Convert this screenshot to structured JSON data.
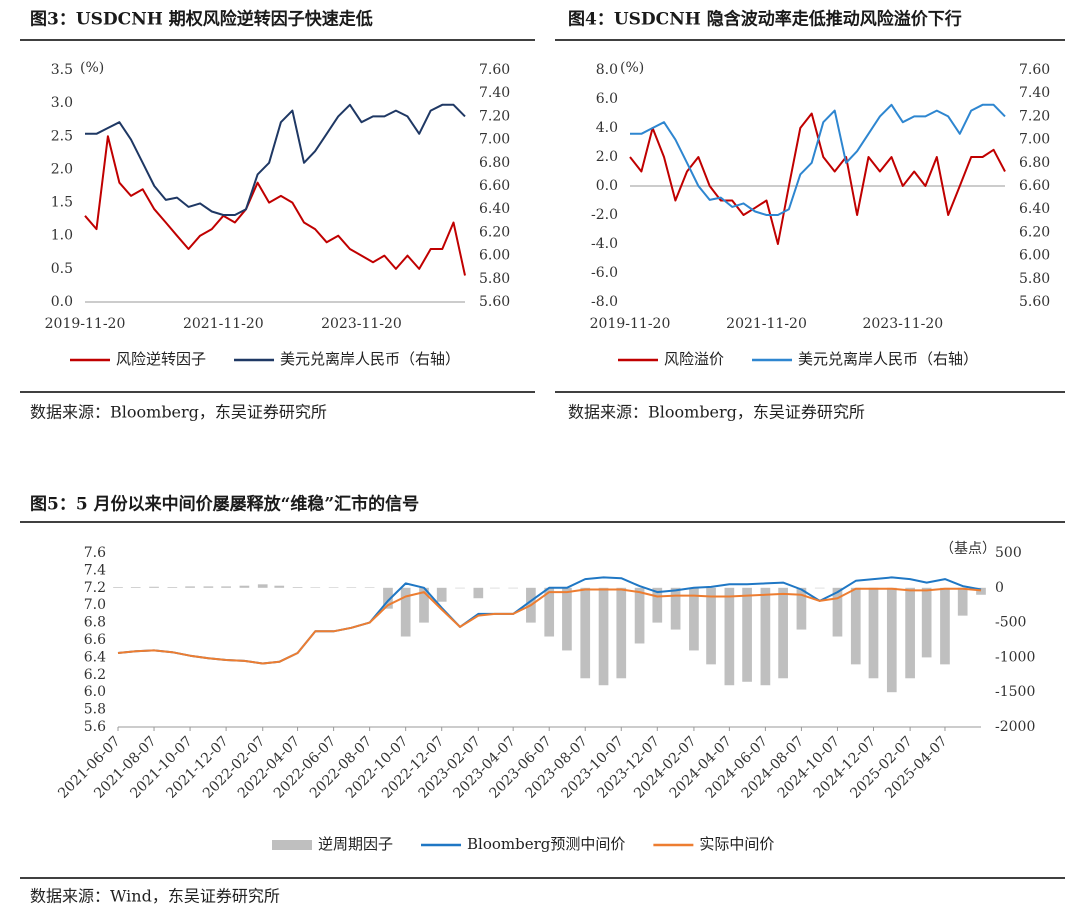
{
  "chart_data": [
    {
      "type": "line",
      "title": "图3：USDCNH 期权风险逆转因子快速走低",
      "unit": "(%)",
      "source": "数据来源：Bloomberg，东吴证券研究所",
      "x": [
        "2019-11-20",
        "2020-01-20",
        "2020-03-20",
        "2020-05-20",
        "2020-07-20",
        "2020-09-20",
        "2020-11-20",
        "2021-01-20",
        "2021-03-20",
        "2021-05-20",
        "2021-07-20",
        "2021-09-20",
        "2021-11-20",
        "2022-01-20",
        "2022-03-20",
        "2022-05-20",
        "2022-07-20",
        "2022-09-20",
        "2022-11-20",
        "2023-01-20",
        "2023-03-20",
        "2023-05-20",
        "2023-07-20",
        "2023-09-20",
        "2023-11-20",
        "2024-01-20",
        "2024-03-20",
        "2024-05-20",
        "2024-07-20",
        "2024-09-20",
        "2024-11-20",
        "2025-01-20",
        "2025-03-20",
        "2025-05-20"
      ],
      "xlim": [
        "2019-11-20",
        "2025-05-20"
      ],
      "xticks": [
        "2019-11-20",
        "2021-11-20",
        "2023-11-20"
      ],
      "ylim": [
        0,
        3.5
      ],
      "yticks": [
        {
          "value": 0,
          "label": "0.0"
        },
        0.5,
        {
          "value": 1,
          "label": "1.0"
        },
        1.5,
        {
          "value": 2,
          "label": "2.0"
        },
        2.5,
        {
          "value": 3,
          "label": "3.0"
        },
        3.5
      ],
      "y2lim": [
        5.6,
        7.6
      ],
      "y2ticks": [
        {
          "value": 5.6,
          "label": "5.60"
        },
        {
          "value": 5.8,
          "label": "5.80"
        },
        {
          "value": 6,
          "label": "6.00"
        },
        {
          "value": 6.2,
          "label": "6.20"
        },
        {
          "value": 6.4,
          "label": "6.40"
        },
        {
          "value": 6.6,
          "label": "6.60"
        },
        {
          "value": 6.8,
          "label": "6.80"
        },
        {
          "value": 7,
          "label": "7.00"
        },
        {
          "value": 7.2,
          "label": "7.20"
        },
        {
          "value": 7.4,
          "label": "7.40"
        },
        {
          "value": 7.6,
          "label": "7.60"
        }
      ],
      "series": [
        {
          "name": "风险逆转因子",
          "color": "#c00000",
          "values": [
            1.3,
            1.1,
            2.5,
            1.8,
            1.6,
            1.7,
            1.4,
            1.2,
            1.0,
            0.8,
            1.0,
            1.1,
            1.3,
            1.2,
            1.4,
            1.8,
            1.5,
            1.6,
            1.5,
            1.2,
            1.1,
            0.9,
            1.0,
            0.8,
            0.7,
            0.6,
            0.7,
            0.5,
            0.7,
            0.5,
            0.8,
            0.8,
            1.2,
            0.4
          ]
        },
        {
          "name": "美元兑离岸人民币（右轴）",
          "color": "#1f3864",
          "axis": "y2",
          "values": [
            7.05,
            7.05,
            7.1,
            7.15,
            7.0,
            6.8,
            6.6,
            6.48,
            6.5,
            6.42,
            6.45,
            6.38,
            6.35,
            6.35,
            6.4,
            6.7,
            6.8,
            7.15,
            7.25,
            6.8,
            6.9,
            7.05,
            7.2,
            7.3,
            7.15,
            7.2,
            7.2,
            7.25,
            7.2,
            7.05,
            7.25,
            7.3,
            7.3,
            7.2
          ]
        }
      ]
    },
    {
      "type": "line",
      "title": "图4：USDCNH 隐含波动率走低推动风险溢价下行",
      "unit": "(%)",
      "source": "数据来源：Bloomberg，东吴证券研究所",
      "x": [
        "2019-11-20",
        "2020-01-20",
        "2020-03-20",
        "2020-05-20",
        "2020-07-20",
        "2020-09-20",
        "2020-11-20",
        "2021-01-20",
        "2021-03-20",
        "2021-05-20",
        "2021-07-20",
        "2021-09-20",
        "2021-11-20",
        "2022-01-20",
        "2022-03-20",
        "2022-05-20",
        "2022-07-20",
        "2022-09-20",
        "2022-11-20",
        "2023-01-20",
        "2023-03-20",
        "2023-05-20",
        "2023-07-20",
        "2023-09-20",
        "2023-11-20",
        "2024-01-20",
        "2024-03-20",
        "2024-05-20",
        "2024-07-20",
        "2024-09-20",
        "2024-11-20",
        "2025-01-20",
        "2025-03-20",
        "2025-05-20"
      ],
      "xlim": [
        "2019-11-20",
        "2025-05-20"
      ],
      "xticks": [
        "2019-11-20",
        "2021-11-20",
        "2023-11-20"
      ],
      "ylim": [
        -8,
        8
      ],
      "yticks": [
        {
          "value": -8,
          "label": "-8.0"
        },
        {
          "value": -6,
          "label": "-6.0"
        },
        {
          "value": -4,
          "label": "-4.0"
        },
        {
          "value": -2,
          "label": "-2.0"
        },
        {
          "value": 0,
          "label": "0.0"
        },
        {
          "value": 2,
          "label": "2.0"
        },
        {
          "value": 4,
          "label": "4.0"
        },
        {
          "value": 6,
          "label": "6.0"
        },
        {
          "value": 8,
          "label": "8.0"
        }
      ],
      "y2lim": [
        5.6,
        7.6
      ],
      "y2ticks": [
        {
          "value": 5.6,
          "label": "5.60"
        },
        {
          "value": 5.8,
          "label": "5.80"
        },
        {
          "value": 6,
          "label": "6.00"
        },
        {
          "value": 6.2,
          "label": "6.20"
        },
        {
          "value": 6.4,
          "label": "6.40"
        },
        {
          "value": 6.6,
          "label": "6.60"
        },
        {
          "value": 6.8,
          "label": "6.80"
        },
        {
          "value": 7,
          "label": "7.00"
        },
        {
          "value": 7.2,
          "label": "7.20"
        },
        {
          "value": 7.4,
          "label": "7.40"
        },
        {
          "value": 7.6,
          "label": "7.60"
        }
      ],
      "series": [
        {
          "name": "风险溢价",
          "color": "#c00000",
          "values": [
            2.0,
            1.0,
            4.0,
            2.0,
            -1.0,
            1.0,
            2.0,
            0.0,
            -1.0,
            -1.0,
            -2.0,
            -1.5,
            -1.0,
            -4.0,
            0.0,
            4.0,
            5.0,
            2.0,
            1.0,
            2.0,
            -2.0,
            2.0,
            1.0,
            2.0,
            0.0,
            1.0,
            0.0,
            2.0,
            -2.0,
            0.0,
            2.0,
            2.0,
            2.5,
            1.0
          ]
        },
        {
          "name": "美元兑离岸人民币（右轴）",
          "color": "#2e86d0",
          "axis": "y2",
          "values": [
            7.05,
            7.05,
            7.1,
            7.15,
            7.0,
            6.8,
            6.6,
            6.48,
            6.5,
            6.42,
            6.45,
            6.38,
            6.35,
            6.35,
            6.4,
            6.7,
            6.8,
            7.15,
            7.25,
            6.8,
            6.9,
            7.05,
            7.2,
            7.3,
            7.15,
            7.2,
            7.2,
            7.25,
            7.2,
            7.05,
            7.25,
            7.3,
            7.3,
            7.2
          ]
        }
      ]
    },
    {
      "type": "combo",
      "title": "图5：5 月份以来中间价屡屡释放“维稳”汇市的信号",
      "unit": "（基点）",
      "source": "数据来源：Wind，东吴证券研究所",
      "x": [
        "2021-06-07",
        "2021-07-07",
        "2021-08-07",
        "2021-09-07",
        "2021-10-07",
        "2021-11-07",
        "2021-12-07",
        "2022-01-07",
        "2022-02-07",
        "2022-03-07",
        "2022-04-07",
        "2022-05-07",
        "2022-06-07",
        "2022-07-07",
        "2022-08-07",
        "2022-09-07",
        "2022-10-07",
        "2022-11-07",
        "2022-12-07",
        "2023-01-07",
        "2023-02-07",
        "2023-03-07",
        "2023-04-07",
        "2023-05-07",
        "2023-06-07",
        "2023-07-07",
        "2023-08-07",
        "2023-09-07",
        "2023-10-07",
        "2023-11-07",
        "2023-12-07",
        "2024-01-07",
        "2024-02-07",
        "2024-03-07",
        "2024-04-07",
        "2024-05-07",
        "2024-06-07",
        "2024-07-07",
        "2024-08-07",
        "2024-09-07",
        "2024-10-07",
        "2024-11-07",
        "2024-12-07",
        "2025-01-07",
        "2025-02-07",
        "2025-03-07",
        "2025-04-07",
        "2025-05-07",
        "2025-06-07"
      ],
      "xlim": [
        "2021-06-07",
        "2025-06-07"
      ],
      "xticks": [
        "2021-06-07",
        "2021-08-07",
        "2021-10-07",
        "2021-12-07",
        "2022-02-07",
        "2022-04-07",
        "2022-06-07",
        "2022-08-07",
        "2022-10-07",
        "2022-12-07",
        "2023-02-07",
        "2023-04-07",
        "2023-06-07",
        "2023-08-07",
        "2023-10-07",
        "2023-12-07",
        "2024-02-07",
        "2024-04-07",
        "2024-06-07",
        "2024-08-07",
        "2024-10-07",
        "2024-12-07",
        "2025-02-07",
        "2025-04-07"
      ],
      "ylim": [
        5.6,
        7.6
      ],
      "yticks": [
        5.6,
        5.8,
        {
          "value": 6,
          "label": "6.0"
        },
        6.2,
        6.4,
        6.6,
        6.8,
        {
          "value": 7,
          "label": "7.0"
        },
        7.2,
        7.4,
        7.6
      ],
      "y2lim": [
        -2000,
        500
      ],
      "y2ticks": [
        -2000,
        -1500,
        -1000,
        -500,
        0,
        500
      ],
      "series": [
        {
          "name": "逆周期因子",
          "type": "bar",
          "color": "#bfbfbf",
          "axis": "y2",
          "values": [
            10,
            10,
            15,
            10,
            20,
            20,
            20,
            30,
            50,
            30,
            10,
            5,
            5,
            5,
            5,
            -300,
            -700,
            -500,
            -200,
            0,
            -150,
            0,
            0,
            -500,
            -700,
            -900,
            -1300,
            -1400,
            -1300,
            -800,
            -500,
            -600,
            -900,
            -1100,
            -1400,
            -1350,
            -1400,
            -1300,
            -600,
            0,
            -700,
            -1100,
            -1300,
            -1500,
            -1300,
            -1000,
            -1100,
            -400,
            -100
          ]
        },
        {
          "name": "Bloomberg预测中间价",
          "type": "line",
          "color": "#1f77c4",
          "values": [
            6.45,
            6.47,
            6.48,
            6.46,
            6.42,
            6.39,
            6.37,
            6.36,
            6.33,
            6.35,
            6.45,
            6.7,
            6.7,
            6.74,
            6.8,
            7.05,
            7.25,
            7.2,
            6.97,
            6.75,
            6.9,
            6.9,
            6.9,
            7.05,
            7.2,
            7.2,
            7.3,
            7.32,
            7.31,
            7.22,
            7.15,
            7.17,
            7.2,
            7.21,
            7.24,
            7.24,
            7.25,
            7.26,
            7.18,
            7.05,
            7.15,
            7.28,
            7.3,
            7.32,
            7.3,
            7.26,
            7.3,
            7.22,
            7.18
          ]
        },
        {
          "name": "实际中间价",
          "type": "line",
          "color": "#ed7d31",
          "values": [
            6.45,
            6.47,
            6.48,
            6.46,
            6.42,
            6.39,
            6.37,
            6.36,
            6.33,
            6.35,
            6.45,
            6.7,
            6.7,
            6.74,
            6.8,
            7.0,
            7.1,
            7.15,
            6.95,
            6.75,
            6.88,
            6.9,
            6.9,
            7.0,
            7.15,
            7.15,
            7.18,
            7.18,
            7.18,
            7.15,
            7.1,
            7.11,
            7.11,
            7.1,
            7.1,
            7.11,
            7.12,
            7.13,
            7.12,
            7.05,
            7.08,
            7.19,
            7.19,
            7.19,
            7.17,
            7.17,
            7.19,
            7.19,
            7.17
          ]
        }
      ]
    }
  ]
}
